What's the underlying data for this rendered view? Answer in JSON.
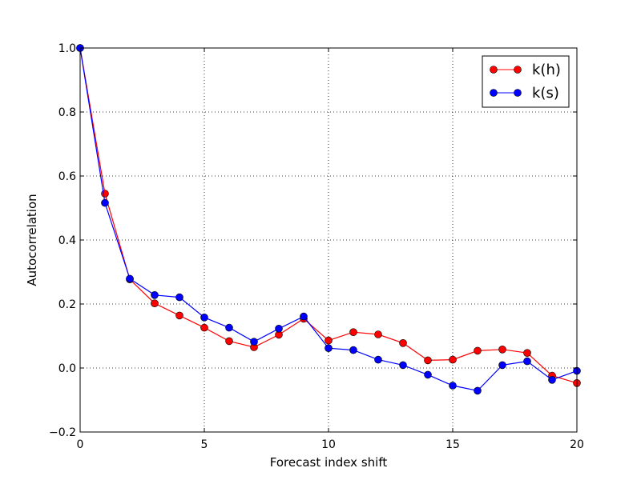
{
  "chart_data": {
    "type": "line",
    "xlabel": "Forecast index shift",
    "ylabel": "Autocorrelation",
    "xlim": [
      0,
      20
    ],
    "ylim": [
      -0.2,
      1.0
    ],
    "xticks": [
      0,
      5,
      10,
      15,
      20
    ],
    "xtick_labels": [
      "0",
      "5",
      "10",
      "15",
      "20"
    ],
    "yticks": [
      -0.2,
      0.0,
      0.2,
      0.4,
      0.6,
      0.8,
      1.0
    ],
    "ytick_labels": [
      "−0.2",
      "0.0",
      "0.2",
      "0.4",
      "0.6",
      "0.8",
      "1.0"
    ],
    "grid": true,
    "legend_position": "top-right",
    "x": [
      0,
      1,
      2,
      3,
      4,
      5,
      6,
      7,
      8,
      9,
      10,
      11,
      12,
      13,
      14,
      15,
      16,
      17,
      18,
      19,
      20
    ],
    "series": [
      {
        "name": "k(h)",
        "color": "#ff0000",
        "values": [
          1.0,
          0.545,
          0.277,
          0.202,
          0.164,
          0.126,
          0.084,
          0.065,
          0.104,
          0.154,
          0.086,
          0.112,
          0.105,
          0.078,
          0.024,
          0.026,
          0.054,
          0.058,
          0.047,
          -0.024,
          -0.047
        ]
      },
      {
        "name": "k(s)",
        "color": "#0000ff",
        "values": [
          1.0,
          0.516,
          0.279,
          0.228,
          0.221,
          0.158,
          0.126,
          0.082,
          0.123,
          0.161,
          0.062,
          0.056,
          0.026,
          0.009,
          -0.021,
          -0.055,
          -0.071,
          0.009,
          0.021,
          -0.037,
          -0.009
        ]
      }
    ]
  }
}
